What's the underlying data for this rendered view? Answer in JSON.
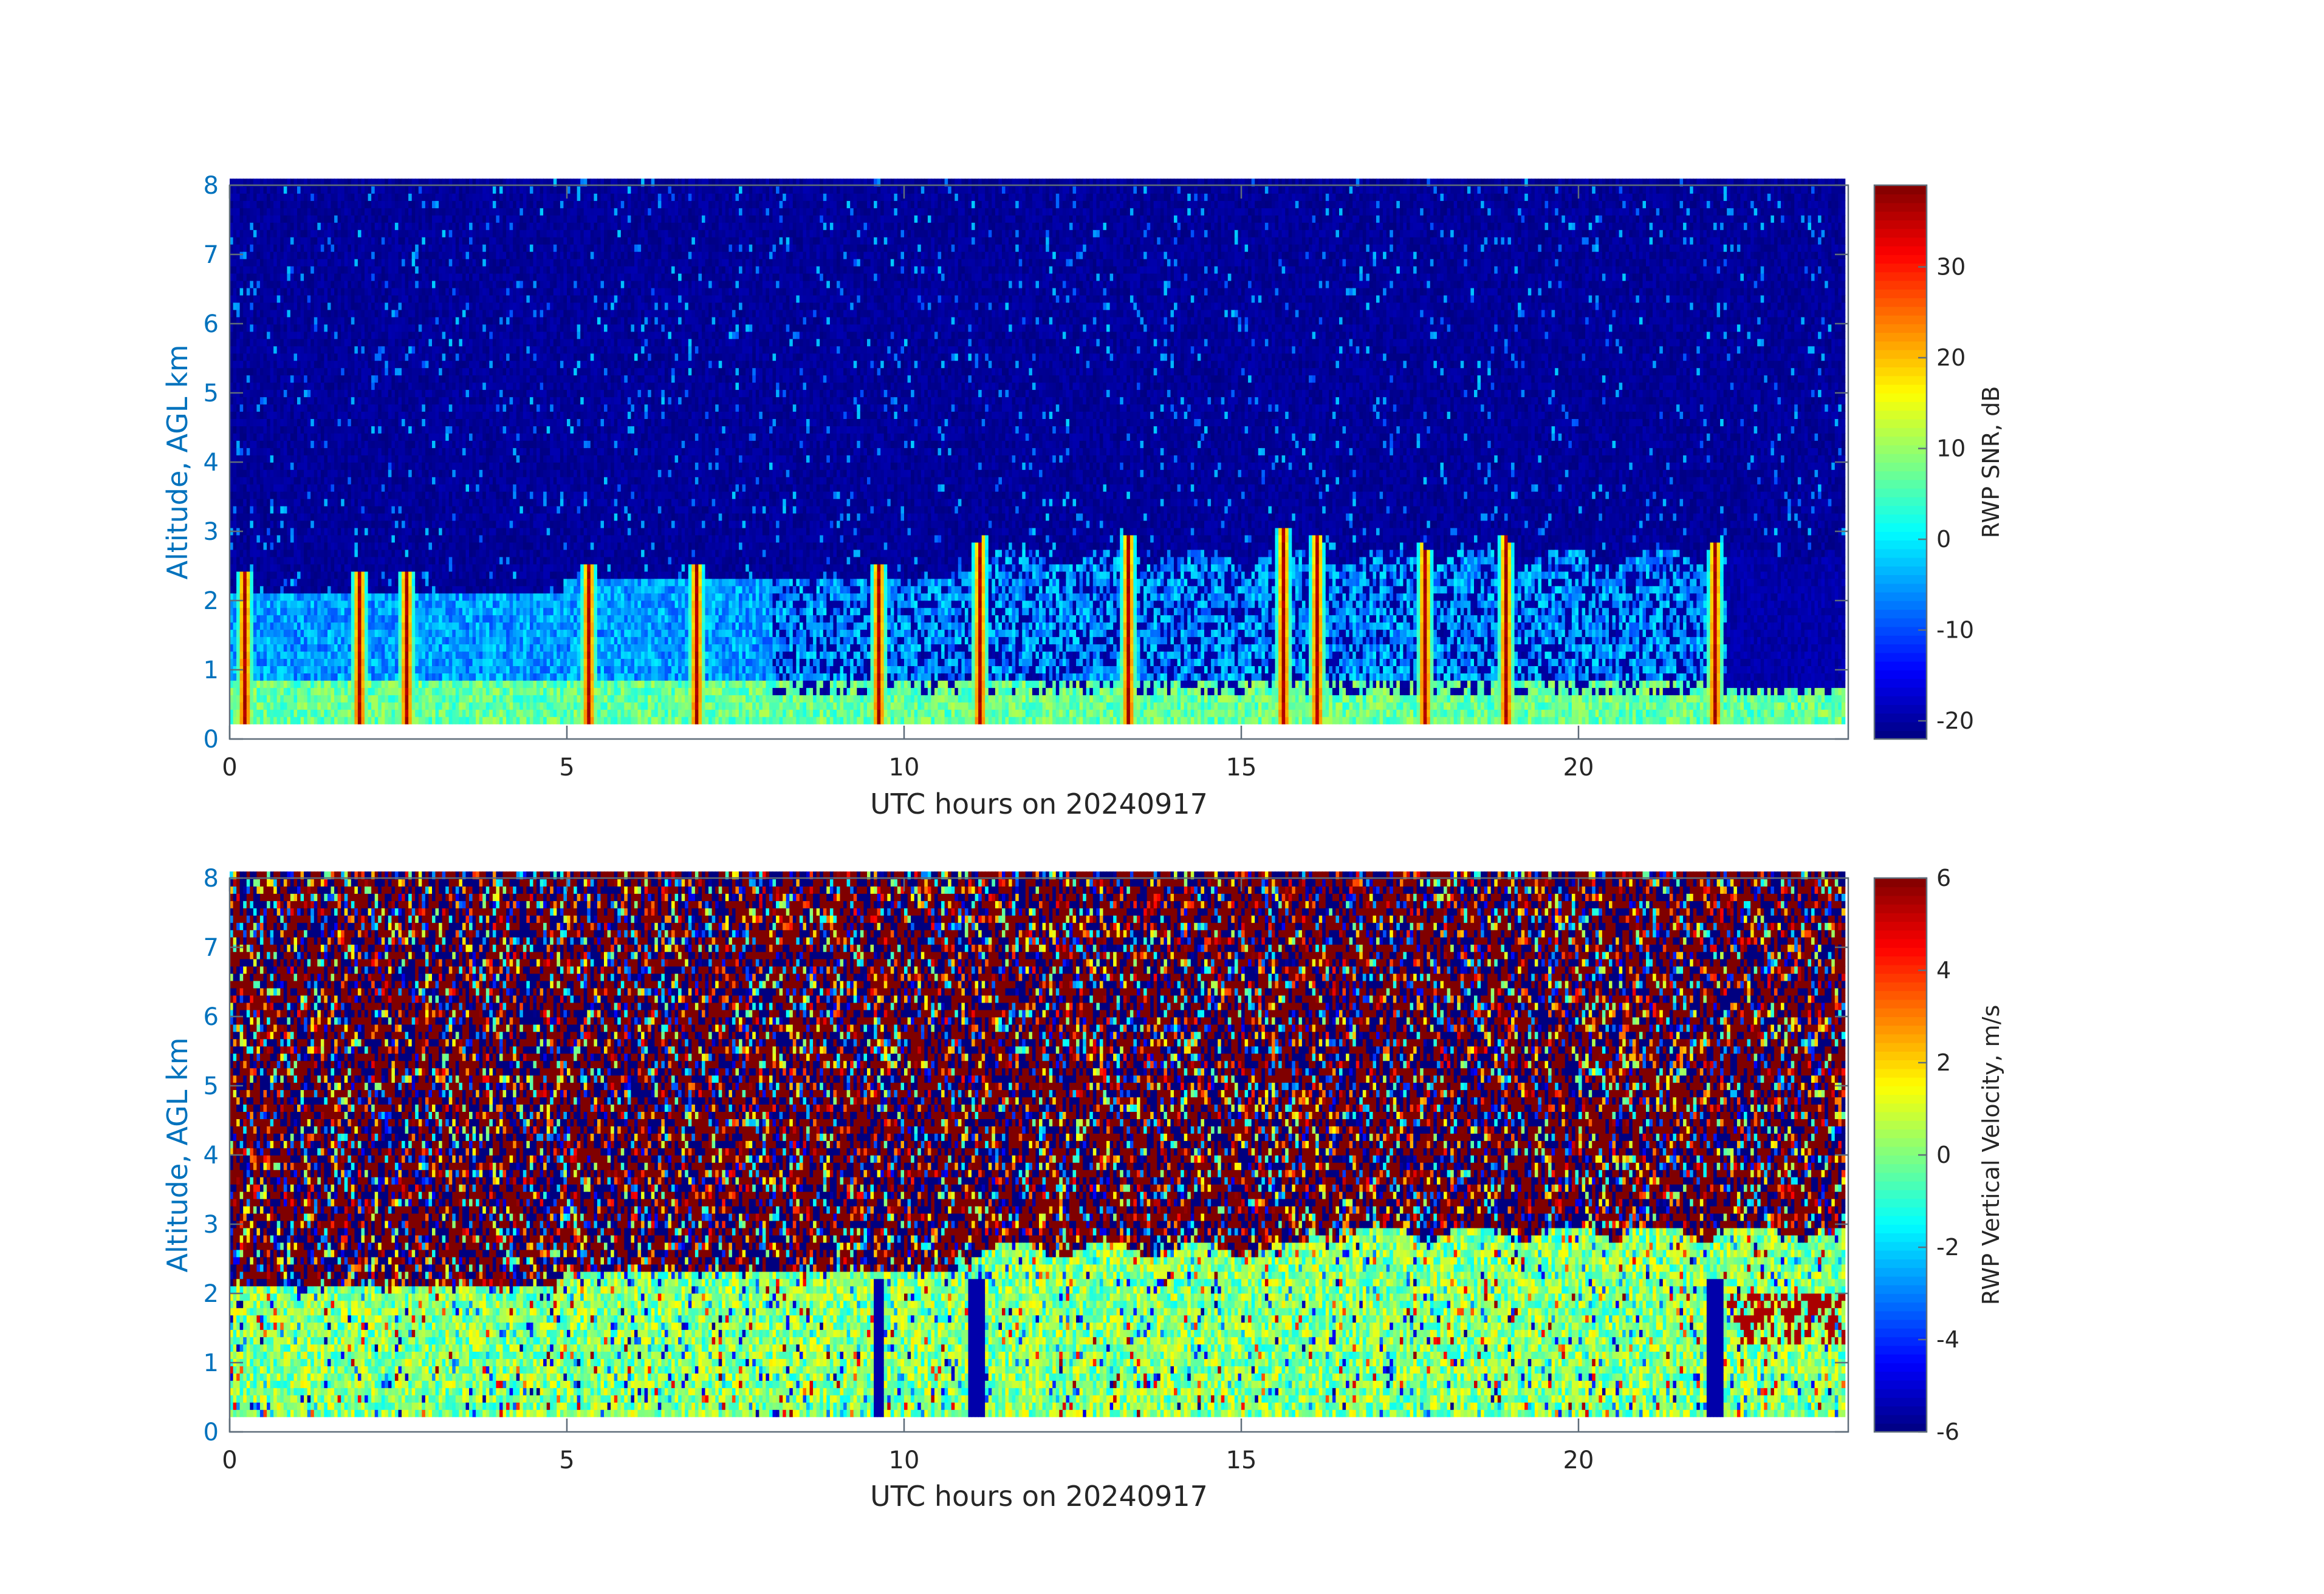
{
  "chart_data": [
    {
      "type": "heatmap",
      "title": "",
      "xlabel": "UTC hours on 20240917",
      "ylabel": "Altitude, AGL km",
      "xlim": [
        0,
        24
      ],
      "ylim": [
        0,
        8
      ],
      "xticks": [
        0,
        5,
        10,
        15,
        20
      ],
      "yticks": [
        0,
        1,
        2,
        3,
        4,
        5,
        6,
        7,
        8
      ],
      "colorbar": {
        "label": "RWP SNR, dB",
        "range": [
          -22,
          39
        ],
        "ticks": [
          -20,
          -10,
          0,
          10,
          20,
          30
        ],
        "colormap": "jet"
      },
      "field": {
        "description_values": "mostly -18 to -22 dB above ~2.2 km; -5 to 15 dB below 2 km; peaks ~30-39 dB in vertical streaks",
        "x_step_hours": 0.05,
        "y_step_km": 0.105,
        "data_bottom_km": 0.22,
        "high_snr_streaks_hours": [
          0.2,
          1.9,
          2.6,
          5.3,
          6.9,
          9.6,
          11.1,
          13.3,
          15.6,
          16.1,
          17.7,
          18.9,
          22.0
        ]
      }
    },
    {
      "type": "heatmap",
      "title": "",
      "xlabel": "UTC hours on 20240917",
      "ylabel": "Altitude, AGL km",
      "xlim": [
        0,
        24
      ],
      "ylim": [
        0,
        8
      ],
      "xticks": [
        0,
        5,
        10,
        15,
        20
      ],
      "yticks": [
        0,
        1,
        2,
        3,
        4,
        5,
        6,
        7,
        8
      ],
      "colorbar": {
        "label": "RWP Vertical Velocity, m/s",
        "range": [
          -6,
          6
        ],
        "ticks": [
          -6,
          -4,
          -2,
          0,
          2,
          4,
          6
        ],
        "colormap": "jet"
      },
      "field": {
        "description_values": "noisy saturated +/-6 m/s above ~2.2-2.8 km; -2 to +2 m/s below, with strong downdraft streaks near 11 h and 22 h",
        "x_step_hours": 0.05,
        "y_step_km": 0.105,
        "data_bottom_km": 0.22
      }
    }
  ]
}
